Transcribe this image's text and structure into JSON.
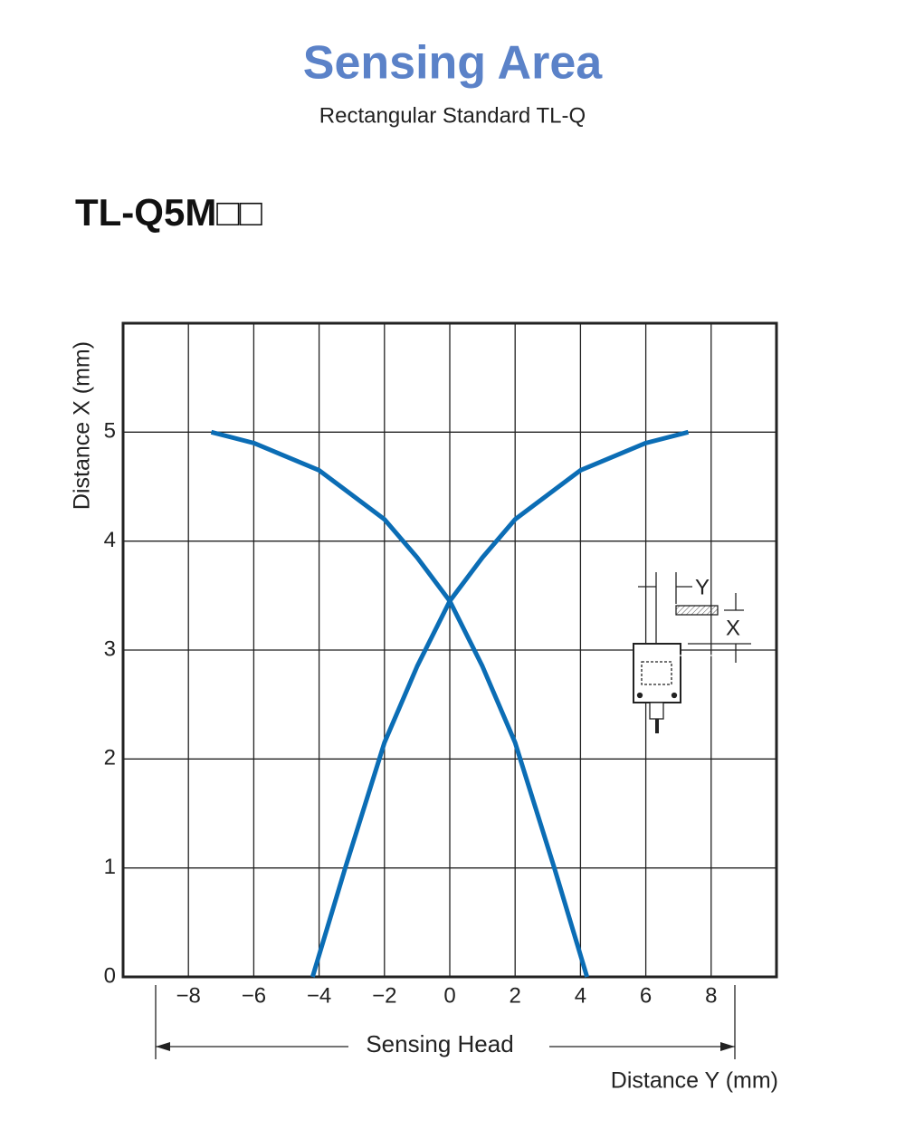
{
  "chart_data": {
    "type": "line",
    "title": "Sensing Area",
    "subtitle": "Rectangular Standard TL-Q",
    "model": "TL-Q5M□□",
    "y_label": "Distance X (mm)",
    "x_label": "Distance Y (mm)",
    "annotation": "Sensing Head",
    "inset_labels": [
      "Y",
      "X"
    ],
    "xlim": [
      -10,
      10
    ],
    "ylim": [
      0,
      6
    ],
    "xticks": [
      {
        "value": -8,
        "label": "−8"
      },
      {
        "value": -6,
        "label": "−6"
      },
      {
        "value": -4,
        "label": "−4"
      },
      {
        "value": -2,
        "label": "−2"
      },
      0,
      2,
      4,
      6,
      8
    ],
    "yticks": [
      0,
      1,
      2,
      3,
      4,
      5
    ],
    "grid": true,
    "series": [
      {
        "color": "#0b6db5",
        "x": [
          -7.3,
          -6,
          -4,
          -2,
          -1,
          0,
          1,
          2,
          3.2,
          4.2
        ],
        "values": [
          5,
          4.9,
          4.65,
          4.2,
          3.85,
          3.45,
          2.85,
          2.15,
          1,
          0
        ]
      },
      {
        "color": "#0b6db5",
        "x": [
          -4.2,
          -3.2,
          -2,
          -1,
          0,
          1,
          2,
          4,
          6,
          7.3
        ],
        "values": [
          0,
          1,
          2.15,
          2.85,
          3.45,
          3.85,
          4.2,
          4.65,
          4.9,
          5
        ]
      }
    ]
  }
}
